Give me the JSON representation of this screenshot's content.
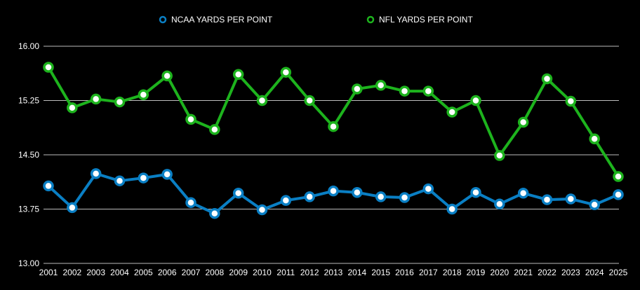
{
  "chart_data": {
    "type": "line",
    "title": "",
    "xlabel": "",
    "ylabel": "",
    "ylim": [
      13.0,
      16.0
    ],
    "yticks": [
      "13.00",
      "13.75",
      "14.50",
      "15.25",
      "16.00"
    ],
    "ytick_values": [
      13.0,
      13.75,
      14.5,
      15.25,
      16.0
    ],
    "grid": true,
    "legend_position": "top",
    "categories": [
      "2001",
      "2002",
      "2003",
      "2004",
      "2005",
      "2006",
      "2007",
      "2008",
      "2009",
      "2010",
      "2011",
      "2012",
      "2013",
      "2014",
      "2015",
      "2016",
      "2017",
      "2018",
      "2019",
      "2020",
      "2021",
      "2022",
      "2023",
      "2024",
      "2025"
    ],
    "series": [
      {
        "name": "NCAA YARDS PER POINT",
        "color": "#0a7fc4",
        "values": [
          14.07,
          13.77,
          14.24,
          14.14,
          14.18,
          14.23,
          13.84,
          13.69,
          13.97,
          13.74,
          13.87,
          13.92,
          14.0,
          13.98,
          13.92,
          13.91,
          14.03,
          13.75,
          13.98,
          13.82,
          13.97,
          13.88,
          13.89,
          13.81,
          13.95
        ]
      },
      {
        "name": "NFL YARDS PER POINT",
        "color": "#1db31d",
        "values": [
          15.71,
          15.15,
          15.27,
          15.23,
          15.33,
          15.59,
          14.99,
          14.85,
          15.61,
          15.25,
          15.64,
          15.25,
          14.89,
          15.41,
          15.46,
          15.38,
          15.38,
          15.09,
          15.25,
          14.49,
          14.95,
          15.55,
          15.24,
          14.72,
          14.2
        ]
      }
    ]
  }
}
